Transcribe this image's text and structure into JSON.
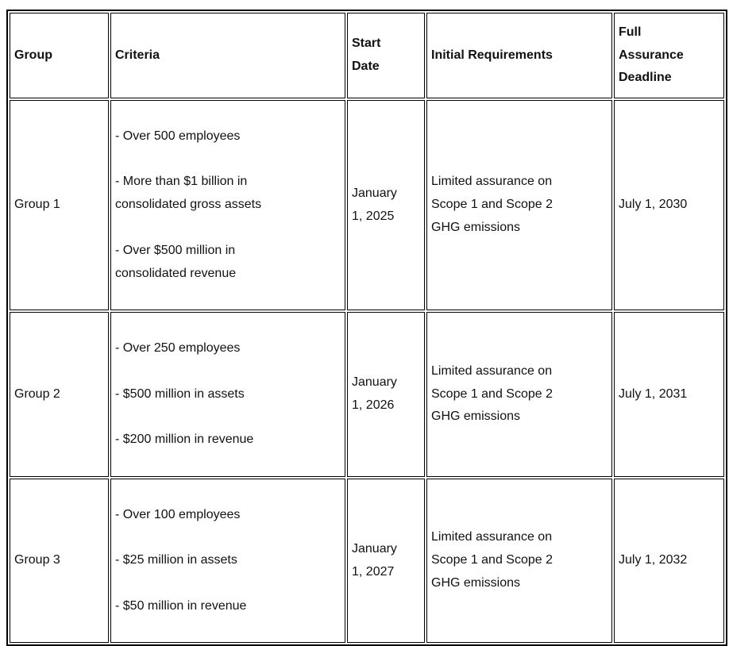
{
  "document": {
    "background_color": "#ffffff",
    "border_color": "#000000",
    "text_color": "#111111"
  },
  "table": {
    "headers": {
      "group": "Group",
      "criteria": "Criteria",
      "start_date": "Start\nDate",
      "initial_requirements": "Initial Requirements",
      "full_assurance_deadline": "Full\nAssurance\nDeadline"
    },
    "rows": [
      {
        "group": "Group 1",
        "criteria": [
          "- Over 500 employees",
          "- More than $1 billion in\nconsolidated gross assets",
          "- Over $500 million in\nconsolidated revenue"
        ],
        "start_date": "January\n1, 2025",
        "initial_requirements": "Limited assurance on\nScope 1 and Scope 2\nGHG emissions",
        "full_assurance_deadline": "July 1, 2030"
      },
      {
        "group": "Group 2",
        "criteria": [
          "- Over 250 employees",
          "- $500 million in assets",
          "- $200 million in revenue"
        ],
        "start_date": "January\n1, 2026",
        "initial_requirements": "Limited assurance on\nScope 1 and Scope 2\nGHG emissions",
        "full_assurance_deadline": "July 1, 2031"
      },
      {
        "group": "Group 3",
        "criteria": [
          "- Over 100 employees",
          "- $25 million in assets",
          "- $50 million in revenue"
        ],
        "start_date": "January\n1, 2027",
        "initial_requirements": "Limited assurance on\nScope 1 and Scope 2\nGHG emissions",
        "full_assurance_deadline": "July 1, 2032"
      }
    ]
  }
}
